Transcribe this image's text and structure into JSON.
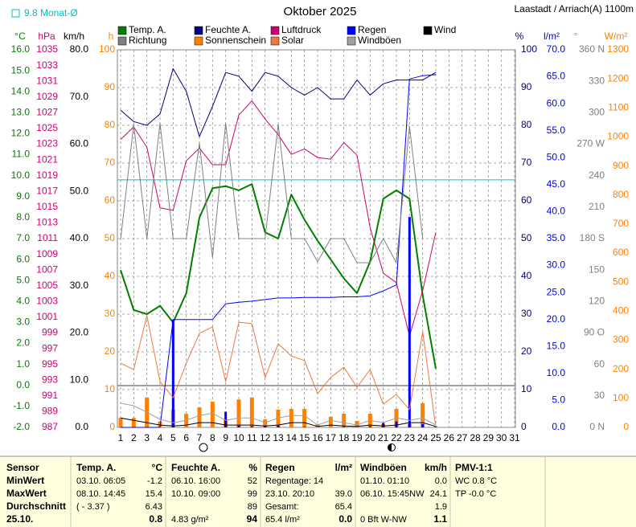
{
  "chart_data": {
    "type": "line",
    "title": "Oktober 2025",
    "subtitle": "Laastadt / Arriach(A) 1100m",
    "monthly_mean": {
      "value": 9.8,
      "label": "9.8 Monat-Ø",
      "color": "#00c0c0",
      "axis": 0
    },
    "x": [
      1,
      2,
      3,
      4,
      5,
      6,
      7,
      8,
      9,
      10,
      11,
      12,
      13,
      14,
      15,
      16,
      17,
      18,
      19,
      20,
      21,
      22,
      23,
      24,
      25,
      26,
      27,
      28,
      29,
      30,
      31
    ],
    "grid": true,
    "axes": [
      {
        "label": "°C",
        "color": "#008000",
        "side": "left",
        "ylim": [
          -2,
          16
        ],
        "yticks": [
          {
            "value": -2,
            "label": "-2.0"
          },
          {
            "value": -1,
            "label": "-1.0"
          },
          {
            "value": 0,
            "label": "0.0"
          },
          {
            "value": 1,
            "label": "1.0"
          },
          {
            "value": 2,
            "label": "2.0"
          },
          {
            "value": 3,
            "label": "3.0"
          },
          {
            "value": 4,
            "label": "4.0"
          },
          {
            "value": 5,
            "label": "5.0"
          },
          {
            "value": 6,
            "label": "6.0"
          },
          {
            "value": 7,
            "label": "7.0"
          },
          {
            "value": 8,
            "label": "8.0"
          },
          {
            "value": 9,
            "label": "9.0"
          },
          {
            "value": 10,
            "label": "10.0"
          },
          {
            "value": 11,
            "label": "11.0"
          },
          {
            "value": 12,
            "label": "12.0"
          },
          {
            "value": 13,
            "label": "13.0"
          },
          {
            "value": 14,
            "label": "14.0"
          },
          {
            "value": 15,
            "label": "15.0"
          },
          {
            "value": 16,
            "label": "16.0"
          }
        ]
      },
      {
        "label": "hPa",
        "color": "#d0006f",
        "side": "left",
        "ylim": [
          987,
          1035
        ],
        "yticks": [
          987,
          989,
          991,
          993,
          995,
          997,
          999,
          1001,
          1003,
          1005,
          1007,
          1009,
          1011,
          1013,
          1015,
          1017,
          1019,
          1021,
          1023,
          1025,
          1027,
          1029,
          1031,
          1033,
          1035
        ]
      },
      {
        "label": "km/h",
        "color": "#000000",
        "side": "left",
        "ylim": [
          0,
          80
        ],
        "yticks": [
          {
            "value": 0,
            "label": "0.0"
          },
          {
            "value": 10,
            "label": "10.0"
          },
          {
            "value": 20,
            "label": "20.0"
          },
          {
            "value": 30,
            "label": "30.0"
          },
          {
            "value": 40,
            "label": "40.0"
          },
          {
            "value": 50,
            "label": "50.0"
          },
          {
            "value": 60,
            "label": "60.0"
          },
          {
            "value": 70,
            "label": "70.0"
          },
          {
            "value": 80,
            "label": "80.0"
          }
        ]
      },
      {
        "label": "h",
        "color": "#ff8000",
        "side": "left",
        "grid": true,
        "ylim": [
          0,
          100
        ],
        "yticks": [
          0,
          10,
          20,
          30,
          40,
          50,
          60,
          70,
          80,
          90,
          100
        ]
      },
      {
        "label": "%",
        "color": "#000080",
        "side": "right",
        "ylim": [
          0,
          100
        ],
        "yticks": [
          0,
          10,
          20,
          30,
          40,
          50,
          60,
          70,
          80,
          90,
          100
        ]
      },
      {
        "label": "l/m²",
        "color": "#0000ff",
        "side": "right",
        "ylim": [
          0,
          70
        ],
        "yticks": [
          {
            "value": 0,
            "label": "0.0"
          },
          {
            "value": 5,
            "label": "5.0"
          },
          {
            "value": 10,
            "label": "10.0"
          },
          {
            "value": 15,
            "label": "15.0"
          },
          {
            "value": 20,
            "label": "20.0"
          },
          {
            "value": 25,
            "label": "25.0"
          },
          {
            "value": 30,
            "label": "30.0"
          },
          {
            "value": 35,
            "label": "35.0"
          },
          {
            "value": 40,
            "label": "40.0"
          },
          {
            "value": 45,
            "label": "45.0"
          },
          {
            "value": 50,
            "label": "50.0"
          },
          {
            "value": 55,
            "label": "55.0"
          },
          {
            "value": 60,
            "label": "60.0"
          },
          {
            "value": 65,
            "label": "65.0"
          },
          {
            "value": 70,
            "label": "70.0"
          }
        ]
      },
      {
        "label": "°",
        "color": "#808080",
        "side": "right",
        "ylim": [
          0,
          360
        ],
        "yticks": [
          {
            "value": 0,
            "label": "0 N"
          },
          30,
          60,
          {
            "value": 90,
            "label": "90 O"
          },
          120,
          150,
          {
            "value": 180,
            "label": "180 S"
          },
          210,
          240,
          {
            "value": 270,
            "label": "270 W"
          },
          300,
          330,
          {
            "value": 360,
            "label": "360 N"
          }
        ]
      },
      {
        "label": "W/m²",
        "color": "#ff8000",
        "side": "right",
        "ylim": [
          0,
          1300
        ],
        "yticks": [
          0,
          100,
          200,
          300,
          400,
          500,
          600,
          700,
          800,
          900,
          1000,
          1100,
          1200,
          1300
        ]
      }
    ],
    "series": [
      {
        "name": "Temp. A.",
        "color": "#008000",
        "kind": "line",
        "width": 2,
        "axis": 0,
        "values": [
          5.5,
          3.6,
          3.4,
          3.8,
          3.0,
          4.4,
          8.0,
          9.4,
          9.5,
          9.3,
          9.6,
          7.3,
          7.0,
          9.1,
          7.9,
          6.9,
          6.0,
          5.1,
          4.4,
          5.9,
          8.9,
          9.3,
          8.9,
          4.3,
          0.8,
          null,
          null,
          null,
          null,
          null,
          null
        ]
      },
      {
        "name": "Feuchte A.",
        "color": "#000080",
        "kind": "line",
        "width": 1,
        "axis": 4,
        "values": [
          84,
          81,
          80,
          83,
          95,
          89,
          77,
          85,
          94,
          93,
          89,
          94,
          93,
          90,
          88,
          90,
          87,
          87,
          92,
          88,
          91,
          92,
          92,
          92,
          94,
          null,
          null,
          null,
          null,
          null,
          null
        ]
      },
      {
        "name": "Luftdruck",
        "color": "#d0006f",
        "kind": "line",
        "width": 1,
        "axis": 1,
        "values": [
          1023.6,
          1025.2,
          1022.6,
          1014.9,
          1014.6,
          1020.9,
          1022.5,
          1020.4,
          1020.4,
          1026.7,
          1028.5,
          1026.2,
          1024.2,
          1021.7,
          1022.4,
          1021.3,
          1021.1,
          1023.2,
          1021.6,
          1012.4,
          1006.6,
          1005.4,
          998.6,
          1004.4,
          1011.8,
          null,
          null,
          null,
          null,
          null,
          null
        ]
      },
      {
        "name": "Regen",
        "color": "#0000ff",
        "kind": "line",
        "width": 1,
        "axis": 5,
        "values": [
          0,
          0,
          0,
          0,
          20.0,
          20.0,
          20.0,
          20.0,
          22.9,
          23.2,
          23.4,
          23.7,
          24.0,
          24.0,
          24.1,
          24.1,
          24.1,
          24.2,
          24.2,
          24.4,
          25.3,
          26.4,
          64.6,
          65.2,
          65.4,
          null,
          null,
          null,
          null,
          null,
          null
        ],
        "daily": [
          0,
          0,
          0,
          0,
          20.0,
          0,
          0,
          0,
          2.9,
          0.3,
          0.2,
          0.3,
          0.3,
          0,
          0.1,
          0,
          0,
          0.1,
          0,
          0.2,
          0.9,
          1.1,
          39.0,
          0.6,
          0.2,
          null,
          null,
          null,
          null,
          null,
          null
        ]
      },
      {
        "name": "Wind",
        "color": "#000000",
        "kind": "line",
        "width": 1,
        "axis": 2,
        "values": [
          2.0,
          1.5,
          1.0,
          0.5,
          0.3,
          0.5,
          1.0,
          1.0,
          0.5,
          0.5,
          0.5,
          0.3,
          0.5,
          1.0,
          1.0,
          0.2,
          0.5,
          0.3,
          0.2,
          0.5,
          0.3,
          0.5,
          1.0,
          1.0,
          0.2,
          null,
          null,
          null,
          null,
          null,
          null
        ]
      },
      {
        "name": "Richtung",
        "color": "#808080",
        "kind": "line",
        "width": 1,
        "axis": 6,
        "values": [
          179,
          289,
          180,
          290,
          180,
          180,
          271,
          162,
          290,
          180,
          180,
          180,
          289,
          180,
          180,
          158,
          180,
          180,
          157,
          157,
          180,
          157,
          287,
          180,
          null,
          null,
          null,
          null,
          null,
          null,
          null
        ]
      },
      {
        "name": "Sonnenschein",
        "color": "#ff8000",
        "kind": "bar",
        "axis": 3,
        "values": [
          2.5,
          2.5,
          7.9,
          1.5,
          4.7,
          3.6,
          5.3,
          6.8,
          2.1,
          7.4,
          7.9,
          2.1,
          4.7,
          4.9,
          4.9,
          0.9,
          2.8,
          3.6,
          1.7,
          3.6,
          0.9,
          4.9,
          0.9,
          6.4,
          0,
          null,
          null,
          null,
          null,
          null,
          null
        ]
      },
      {
        "name": "Solar",
        "color": "#f07840",
        "kind": "line",
        "width": 1,
        "axis": 7,
        "values": [
          221,
          199,
          385,
          158,
          102,
          221,
          324,
          346,
          158,
          362,
          357,
          172,
          288,
          246,
          230,
          116,
          172,
          207,
          138,
          199,
          80,
          113,
          61,
          329,
          0,
          null,
          null,
          null,
          null,
          null,
          null
        ]
      },
      {
        "name": "Windböen",
        "color": "#a0a0a0",
        "kind": "line",
        "width": 1,
        "axis": 2,
        "values": [
          5.1,
          4.6,
          3.2,
          1.7,
          1.0,
          1.5,
          2.5,
          3.0,
          1.5,
          2.0,
          2.0,
          1.0,
          2.0,
          2.5,
          2.5,
          0.5,
          1.5,
          1.0,
          0.5,
          1.5,
          1.0,
          2.0,
          1.5,
          2.0,
          0.5,
          null,
          null,
          null,
          null,
          null,
          null
        ]
      }
    ]
  },
  "summary": {
    "row_labels": [
      "Sensor",
      "MinWert",
      "MaxWert",
      "Durchschnitt",
      "25.10."
    ],
    "groups": [
      {
        "rows": [
          [
            "Temp. A.",
            "°C"
          ],
          [
            "03.10. 06:05",
            "-1.2"
          ],
          [
            "08.10. 14:45",
            "15.4"
          ],
          [
            "( - 3.37 )",
            "6.43"
          ],
          [
            null,
            "0.8"
          ]
        ]
      },
      {
        "rows": [
          [
            "Feuchte A.",
            "%"
          ],
          [
            "06.10. 16:00",
            "52"
          ],
          [
            "10.10. 09:00",
            "99"
          ],
          [
            null,
            "89"
          ],
          [
            "4.83 g/m²",
            "94"
          ]
        ]
      },
      {
        "rows": [
          [
            "Regen",
            "l/m²"
          ],
          [
            "Regentage: 14",
            null
          ],
          [
            "23.10. 20:10",
            "39.0"
          ],
          [
            "Gesamt:",
            "65.4"
          ],
          [
            "65.4 l/m²",
            "0.0"
          ]
        ]
      },
      {
        "rows": [
          [
            "Windböen",
            "km/h"
          ],
          [
            "01.10. 01:10",
            "0.0"
          ],
          [
            "06.10. 15:45NW",
            "24.1"
          ],
          [
            null,
            "1.9"
          ],
          [
            "0 Bft W-NW",
            "1.1"
          ]
        ]
      },
      {
        "rows": [
          [
            "PMV-1:1",
            null
          ],
          [
            "WC 0.8 °C",
            null
          ],
          [
            "TP -0.0 °C",
            null
          ]
        ]
      }
    ]
  }
}
